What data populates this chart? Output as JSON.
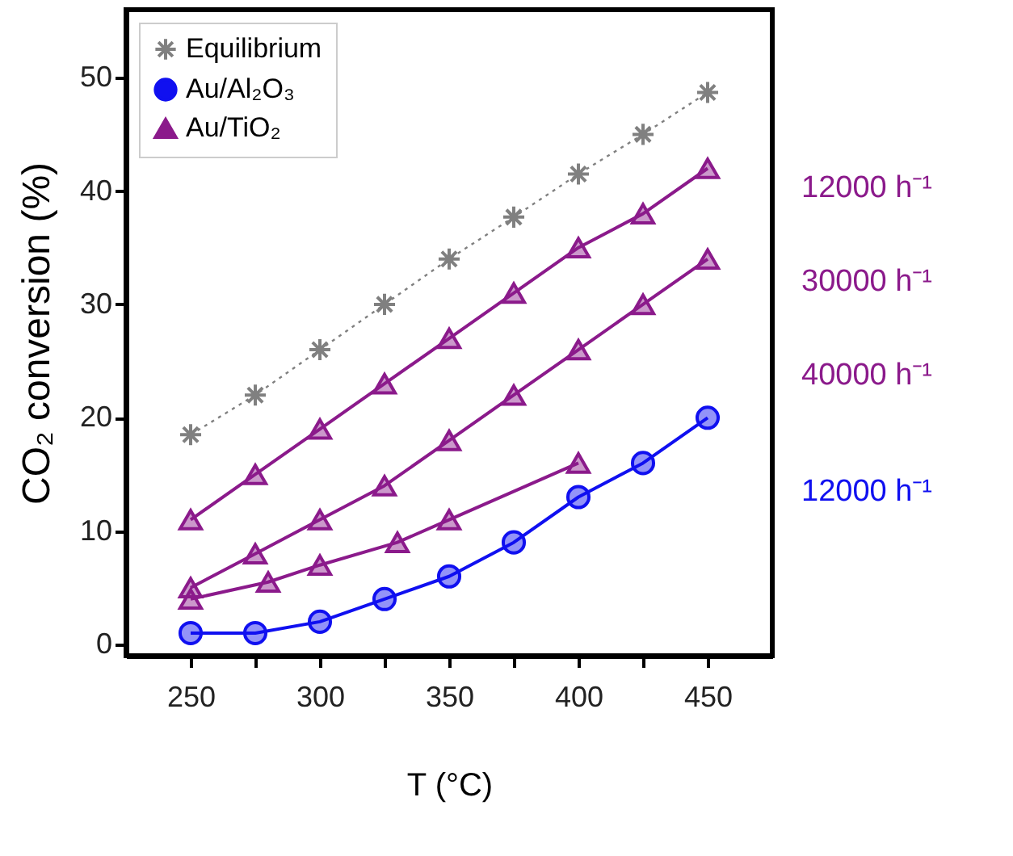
{
  "chart_data": {
    "type": "line",
    "xlabel": "T (°C)",
    "ylabel": "CO₂ conversion  (%)",
    "xlim": [
      225,
      475
    ],
    "ylim": [
      -1,
      56
    ],
    "xticks": [
      250,
      {
        "value": 275,
        "label": null
      },
      300,
      {
        "value": 325,
        "label": null
      },
      350,
      {
        "value": 375,
        "label": null
      },
      400,
      {
        "value": 425,
        "label": null
      },
      450
    ],
    "yticks": [
      0,
      10,
      20,
      30,
      40,
      50
    ],
    "legend": "top left",
    "grid": false,
    "series": [
      {
        "name": "Equilibrium",
        "color": "#808080",
        "marker": "cross",
        "line_style": "dotted",
        "x": [
          250,
          275,
          300,
          325,
          350,
          375,
          400,
          425,
          450
        ],
        "values": [
          18.5,
          22,
          26,
          30,
          34,
          37.7,
          41.5,
          45,
          48.7
        ]
      },
      {
        "name": "Au/Al₂O₃",
        "color": "#1010f0",
        "marker": "circle",
        "line_style": "solid",
        "x": [
          250,
          275,
          300,
          325,
          350,
          375,
          400,
          425,
          450
        ],
        "values": [
          1,
          1,
          2,
          4,
          6,
          9,
          13,
          16,
          20
        ]
      },
      {
        "name": "Au/TiO₂",
        "color": "#8b1a8b",
        "marker": "triangle",
        "line_style": "solid",
        "x": [
          250,
          275,
          300,
          325,
          350,
          375,
          400,
          425,
          450
        ],
        "values": [
          11,
          15,
          19,
          23,
          27,
          31,
          35,
          38,
          42
        ]
      },
      {
        "color": "#8b1a8b",
        "marker": "triangle",
        "line_style": "solid",
        "x": [
          250,
          275,
          300,
          325,
          350,
          375,
          400,
          425,
          450
        ],
        "values": [
          5,
          8,
          11,
          14,
          18,
          22,
          26,
          30,
          34
        ]
      },
      {
        "color": "#8b1a8b",
        "marker": "triangle",
        "line_style": "solid",
        "x": [
          250,
          280,
          300,
          330,
          350,
          400
        ],
        "values": [
          4,
          5.5,
          7,
          9,
          11,
          16
        ]
      }
    ],
    "annotations": [
      "12000 h⁻¹",
      "30000 h⁻¹",
      "40000 h⁻¹",
      "12000 h⁻¹"
    ]
  }
}
